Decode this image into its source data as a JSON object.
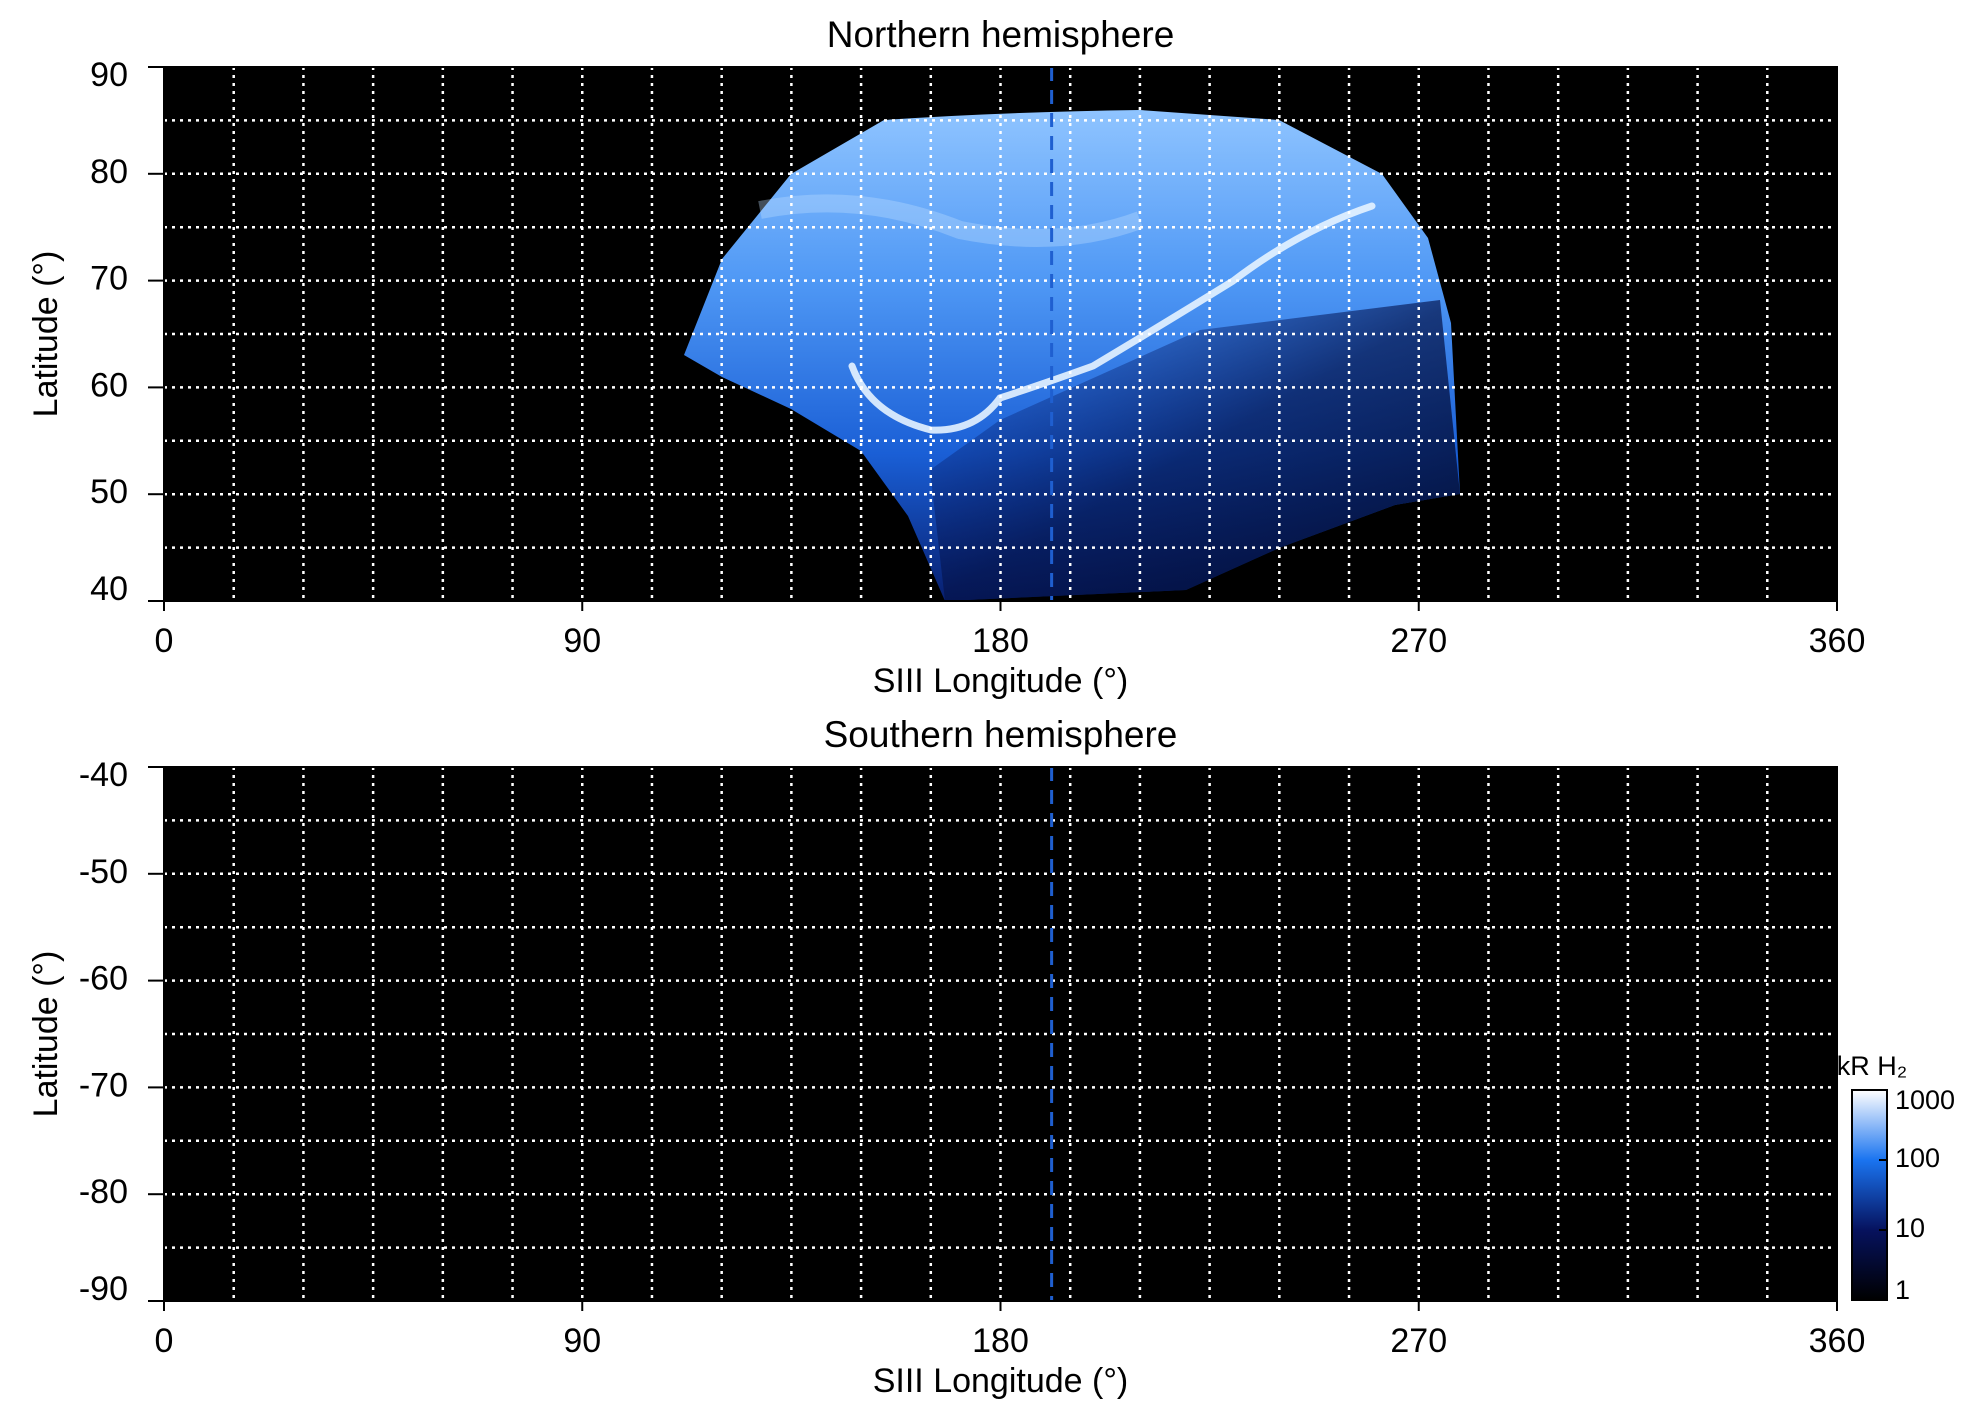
{
  "chart_data": [
    {
      "type": "map",
      "title": "Northern hemisphere",
      "xlabel": "SIII Longitude (°)",
      "ylabel": "Latitude (°)",
      "xlim": [
        0,
        360
      ],
      "xticks": [
        0,
        90,
        180,
        270,
        360
      ],
      "ylim": [
        40,
        90
      ],
      "yticks": [
        40,
        50,
        60,
        70,
        80,
        90
      ],
      "grid": true,
      "grid_step": {
        "x": 15,
        "y": 5
      },
      "background": "#000000",
      "vline": {
        "value": 191,
        "color": "#1f5fd0",
        "style": "dashed"
      }
    },
    {
      "type": "map",
      "title": "Southern hemisphere",
      "xlabel": "SIII Longitude (°)",
      "ylabel": "Latitude (°)",
      "xlim": [
        0,
        360
      ],
      "xticks": [
        0,
        90,
        180,
        270,
        360
      ],
      "ylim": [
        -90,
        -40
      ],
      "yticks": [
        -90,
        -80,
        -70,
        -60,
        -50,
        -40
      ],
      "grid": true,
      "grid_step": {
        "x": 15,
        "y": 5
      },
      "background": "#000000",
      "vline": {
        "value": 191,
        "color": "#1f5fd0",
        "style": "dashed"
      },
      "colorbar": {
        "label": "kR H₂",
        "lim": [
          1,
          1000
        ],
        "ticks": [
          1,
          10,
          100,
          1000
        ],
        "log": true,
        "colors": [
          "#000000",
          "#06125e",
          "#1a74f0",
          "#ffffff"
        ]
      }
    }
  ]
}
